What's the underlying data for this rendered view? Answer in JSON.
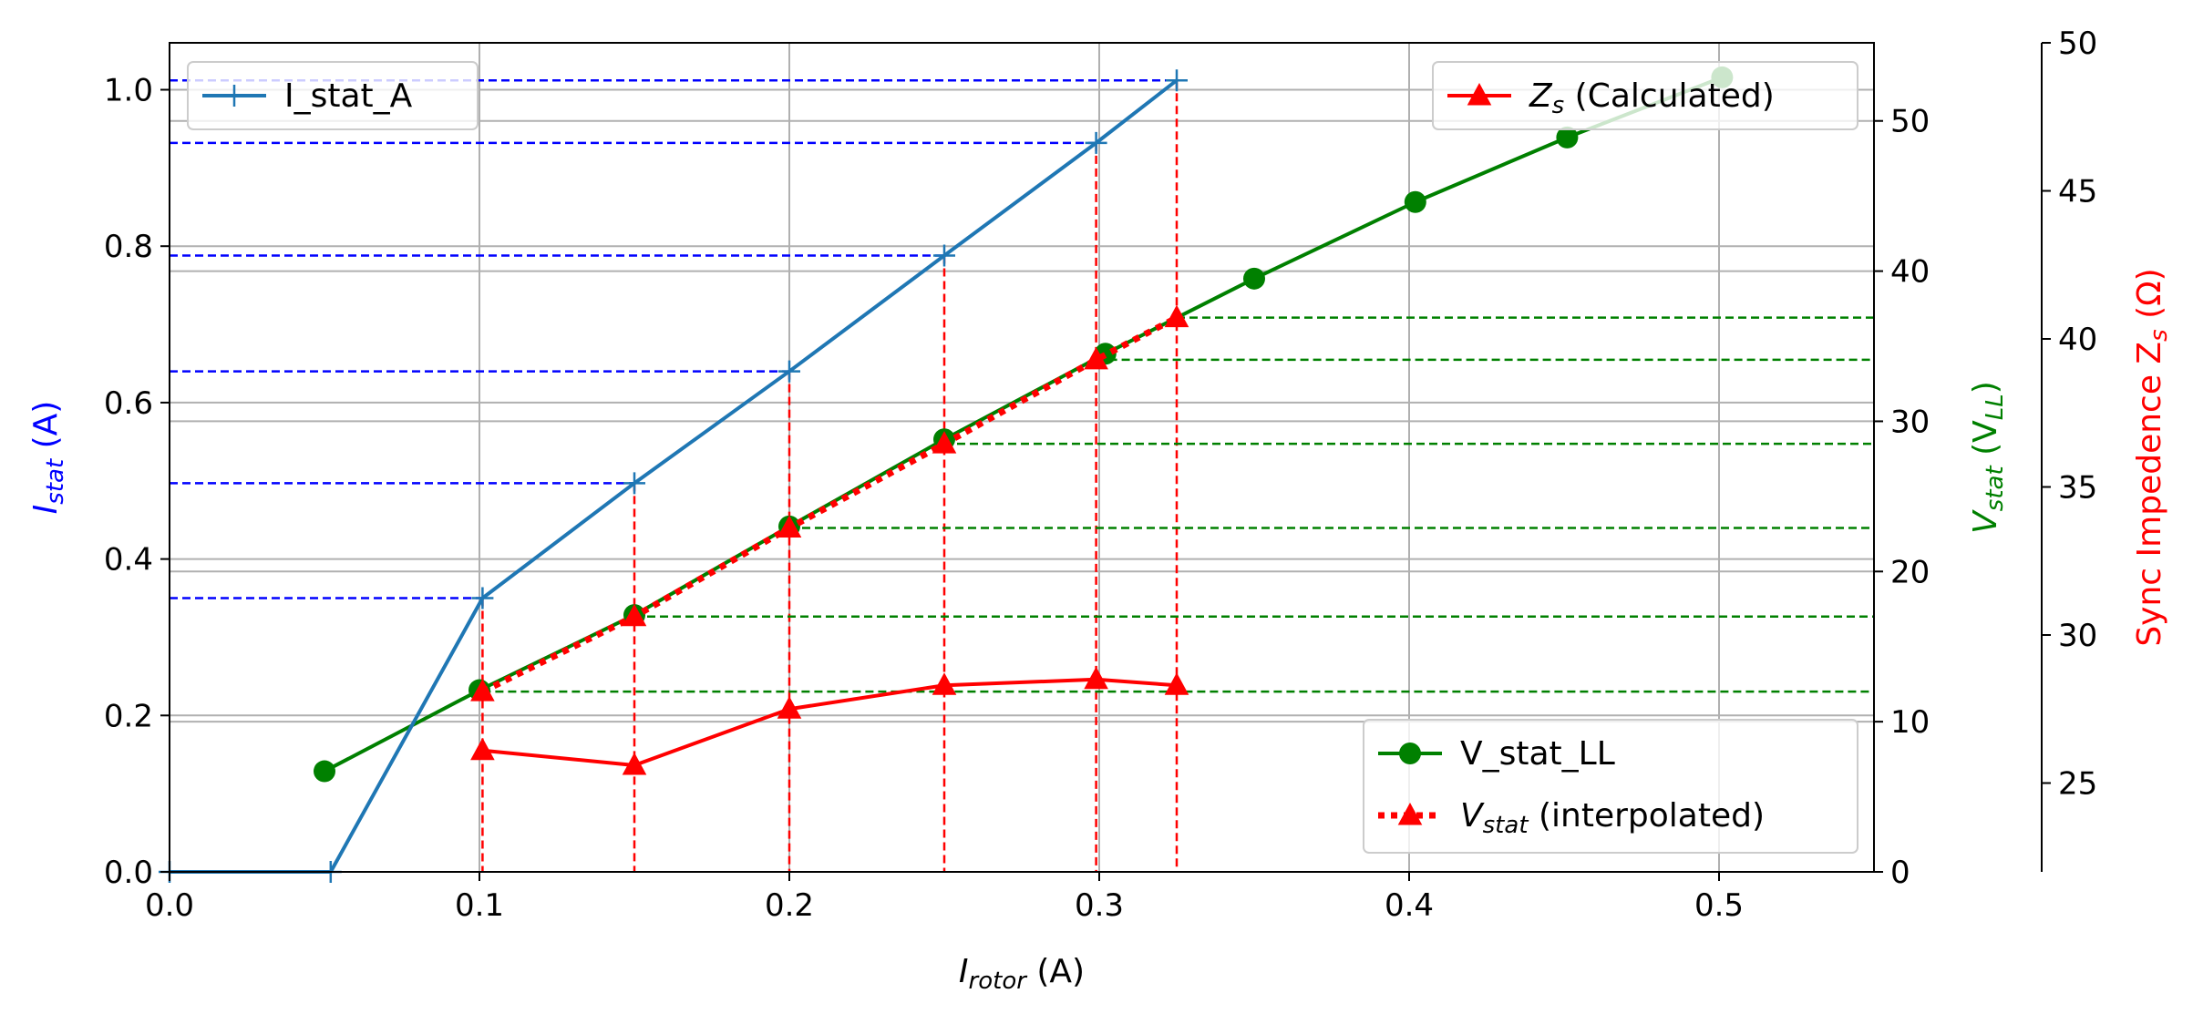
{
  "chart_data": {
    "type": "line",
    "title": "",
    "xlabel": {
      "main": "I",
      "sub": "rotor",
      "unit": " (A)"
    },
    "x_axis": {
      "range": [
        0,
        0.55
      ],
      "ticks": [
        0.0,
        0.1,
        0.2,
        0.3,
        0.4,
        0.5
      ],
      "tick_labels": [
        "0.0",
        "0.1",
        "0.2",
        "0.3",
        "0.4",
        "0.5"
      ]
    },
    "left_axis": {
      "label": {
        "main": "I",
        "sub": "stat",
        "unit": " (A)"
      },
      "color": "#0000ff",
      "range": [
        0,
        1.06
      ],
      "ticks": [
        0.0,
        0.2,
        0.4,
        0.6,
        0.8,
        1.0
      ],
      "tick_labels": [
        "0.0",
        "0.2",
        "0.4",
        "0.6",
        "0.8",
        "1.0"
      ]
    },
    "right_axis_1": {
      "label": {
        "main": "V",
        "sub": "stat",
        "unit_pre": " (V",
        "unit_sub": "LL",
        "unit_post": ")"
      },
      "color": "#008000",
      "range": [
        0,
        55.2
      ],
      "ticks": [
        0,
        10,
        20,
        30,
        40,
        50
      ],
      "tick_labels": [
        "0",
        "10",
        "20",
        "30",
        "40",
        "50"
      ]
    },
    "right_axis_2": {
      "label": {
        "main": "Sync Impedence Z",
        "sub": "s",
        "unit": " (Ω)"
      },
      "color": "#ff0000",
      "range": [
        22,
        50
      ],
      "ticks": [
        25,
        30,
        35,
        40,
        45,
        50
      ],
      "tick_labels": [
        "25",
        "30",
        "35",
        "40",
        "45",
        "50"
      ]
    },
    "grid": true,
    "series": [
      {
        "name": "I_stat_A",
        "axis": "left",
        "color": "#1f77b4",
        "marker": "plus",
        "x": [
          0.0,
          0.052,
          0.101,
          0.15,
          0.2,
          0.25,
          0.299,
          0.325
        ],
        "y": [
          0.0,
          0.0,
          0.35,
          0.497,
          0.64,
          0.788,
          0.932,
          1.012
        ]
      },
      {
        "name": "V_stat_LL",
        "axis": "right1",
        "color": "#008000",
        "marker": "circle",
        "x": [
          0.05,
          0.1,
          0.15,
          0.2,
          0.25,
          0.302,
          0.35,
          0.402,
          0.451,
          0.501
        ],
        "y": [
          6.7,
          12.1,
          17.1,
          23.0,
          28.8,
          34.5,
          39.5,
          44.6,
          48.9,
          52.9
        ]
      },
      {
        "name": "Vstat_interpolated",
        "legend": {
          "main": "V",
          "sub": "stat",
          "rest": " (interpolated)"
        },
        "axis": "right1",
        "color": "#ff0000",
        "marker": "triangle",
        "dotted": true,
        "x": [
          0.101,
          0.15,
          0.2,
          0.25,
          0.299,
          0.325
        ],
        "y": [
          12.0,
          17.0,
          22.9,
          28.5,
          34.1,
          36.9
        ]
      },
      {
        "name": "Zs_calculated",
        "legend": {
          "main": "Z",
          "sub": "s",
          "rest": " (Calculated)"
        },
        "axis": "right2",
        "color": "#ff0000",
        "marker": "triangle",
        "x": [
          0.101,
          0.15,
          0.2,
          0.25,
          0.299,
          0.325
        ],
        "y": [
          26.1,
          25.6,
          27.5,
          28.3,
          28.5,
          28.3
        ]
      }
    ],
    "legend_placement": {
      "I_stat_A": "top-left",
      "Zs_calculated": "top-right",
      "V_stat_LL": "bottom-right"
    }
  },
  "colors": {
    "grid": "#b0b0b0",
    "i_stat_guides": "#0000ff",
    "v_stat_guides": "#008000",
    "vertical_guides": "#ff0000"
  }
}
